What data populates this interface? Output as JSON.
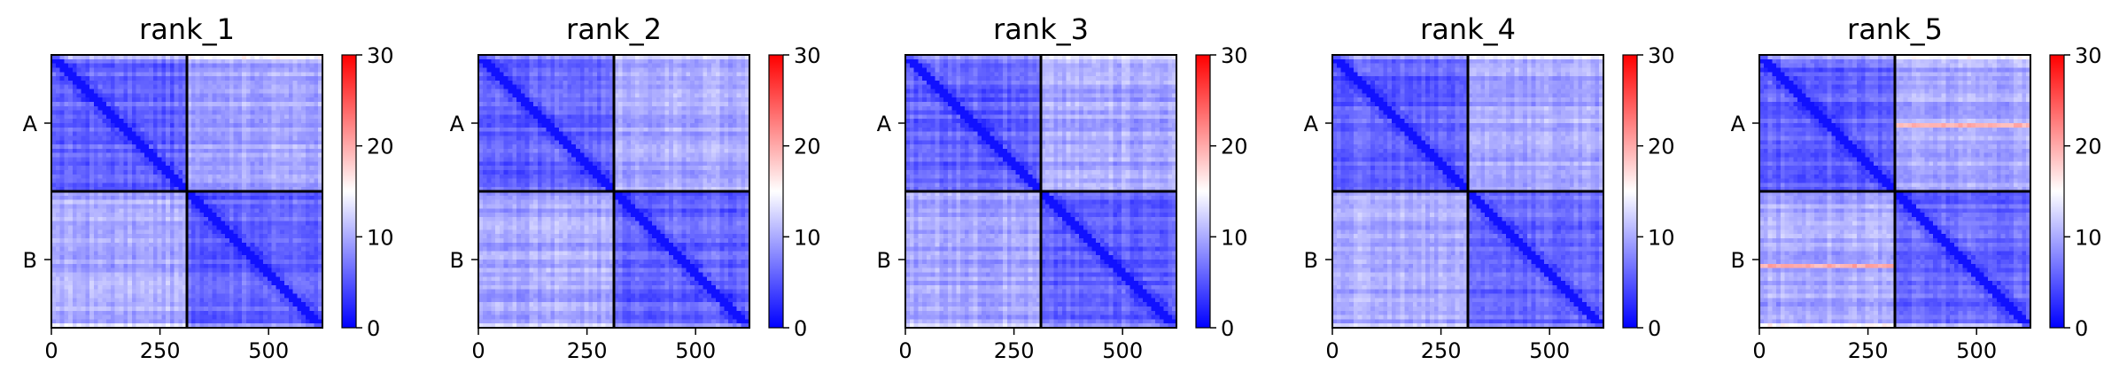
{
  "figure": {
    "colormap": {
      "low": "#0000ff",
      "mid": "#ffffff",
      "high": "#ff0000"
    },
    "frame_color": "#000000"
  },
  "chart_data": [
    {
      "type": "heatmap",
      "title": "rank_1",
      "xticks": [
        0,
        250,
        500
      ],
      "xlim": [
        0,
        624
      ],
      "chain_boundary": 312,
      "ylabels": [
        "A",
        "B"
      ],
      "colorbar": {
        "range": [
          0,
          30
        ],
        "ticks": [
          0,
          10,
          20,
          30
        ]
      },
      "intra_chain_mean": 4,
      "inter_chain_mean": 8,
      "high_rows": []
    },
    {
      "type": "heatmap",
      "title": "rank_2",
      "xticks": [
        0,
        250,
        500
      ],
      "xlim": [
        0,
        624
      ],
      "chain_boundary": 312,
      "ylabels": [
        "A",
        "B"
      ],
      "colorbar": {
        "range": [
          0,
          30
        ],
        "ticks": [
          0,
          10,
          20,
          30
        ]
      },
      "intra_chain_mean": 4,
      "inter_chain_mean": 8,
      "high_rows": []
    },
    {
      "type": "heatmap",
      "title": "rank_3",
      "xticks": [
        0,
        250,
        500
      ],
      "xlim": [
        0,
        624
      ],
      "chain_boundary": 312,
      "ylabels": [
        "A",
        "B"
      ],
      "colorbar": {
        "range": [
          0,
          30
        ],
        "ticks": [
          0,
          10,
          20,
          30
        ]
      },
      "intra_chain_mean": 4,
      "inter_chain_mean": 8,
      "high_rows": []
    },
    {
      "type": "heatmap",
      "title": "rank_4",
      "xticks": [
        0,
        250,
        500
      ],
      "xlim": [
        0,
        624
      ],
      "chain_boundary": 312,
      "ylabels": [
        "A",
        "B"
      ],
      "colorbar": {
        "range": [
          0,
          30
        ],
        "ticks": [
          0,
          10,
          20,
          30
        ]
      },
      "intra_chain_mean": 4,
      "inter_chain_mean": 8,
      "high_rows": []
    },
    {
      "type": "heatmap",
      "title": "rank_5",
      "xticks": [
        0,
        250,
        500
      ],
      "xlim": [
        0,
        624
      ],
      "chain_boundary": 312,
      "ylabels": [
        "A",
        "B"
      ],
      "colorbar": {
        "range": [
          0,
          30
        ],
        "ticks": [
          0,
          10,
          20,
          30
        ]
      },
      "intra_chain_mean": 4,
      "inter_chain_mean": 8,
      "high_rows": [
        160,
        475
      ]
    }
  ]
}
